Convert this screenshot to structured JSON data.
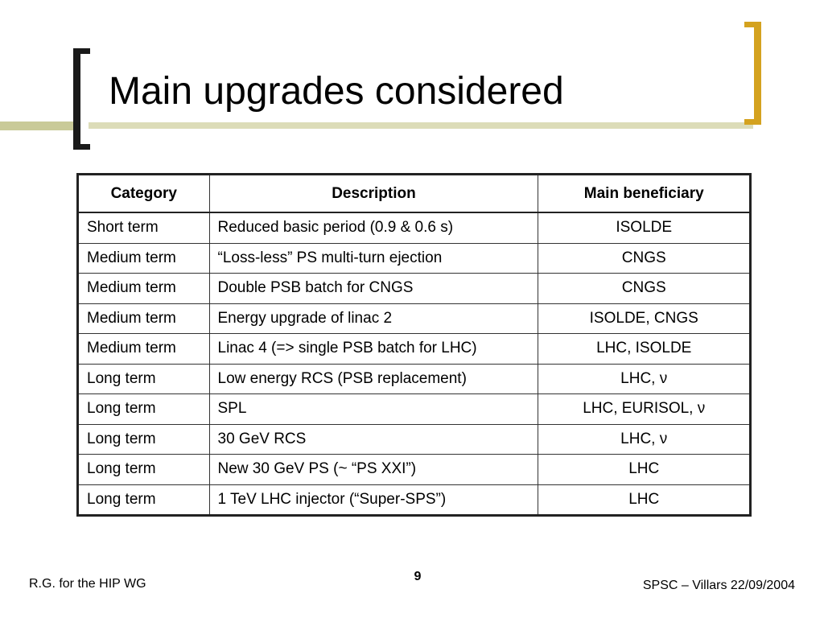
{
  "slide": {
    "title": "Main upgrades considered",
    "page_number": "9",
    "footer_left": "R.G. for the HIP WG",
    "footer_right": "SPSC – Villars 22/09/2004"
  },
  "table": {
    "headers": [
      "Category",
      "Description",
      "Main beneficiary"
    ],
    "rows": [
      [
        "Short term",
        "Reduced basic period (0.9 & 0.6 s)",
        "ISOLDE"
      ],
      [
        "Medium term",
        "“Loss-less” PS multi-turn ejection",
        "CNGS"
      ],
      [
        "Medium term",
        "Double PSB batch for CNGS",
        "CNGS"
      ],
      [
        "Medium term",
        "Energy upgrade of linac 2",
        "ISOLDE, CNGS"
      ],
      [
        "Medium term",
        "Linac 4 (=> single PSB batch for LHC)",
        "LHC, ISOLDE"
      ],
      [
        "Long term",
        "Low energy RCS (PSB replacement)",
        "LHC, ν"
      ],
      [
        "Long term",
        "SPL",
        "LHC, EURISOL, ν"
      ],
      [
        "Long term",
        "30 GeV RCS",
        "LHC, ν"
      ],
      [
        "Long term",
        "New 30 GeV PS (~ “PS XXI”)",
        "LHC"
      ],
      [
        "Long term",
        "1 TeV LHC injector (“Super-SPS”)",
        "LHC"
      ]
    ]
  },
  "colors": {
    "accent_gold": "#d4a21f",
    "accent_olive": "#c9ca98",
    "bracket_dark": "#1a1a1a"
  }
}
